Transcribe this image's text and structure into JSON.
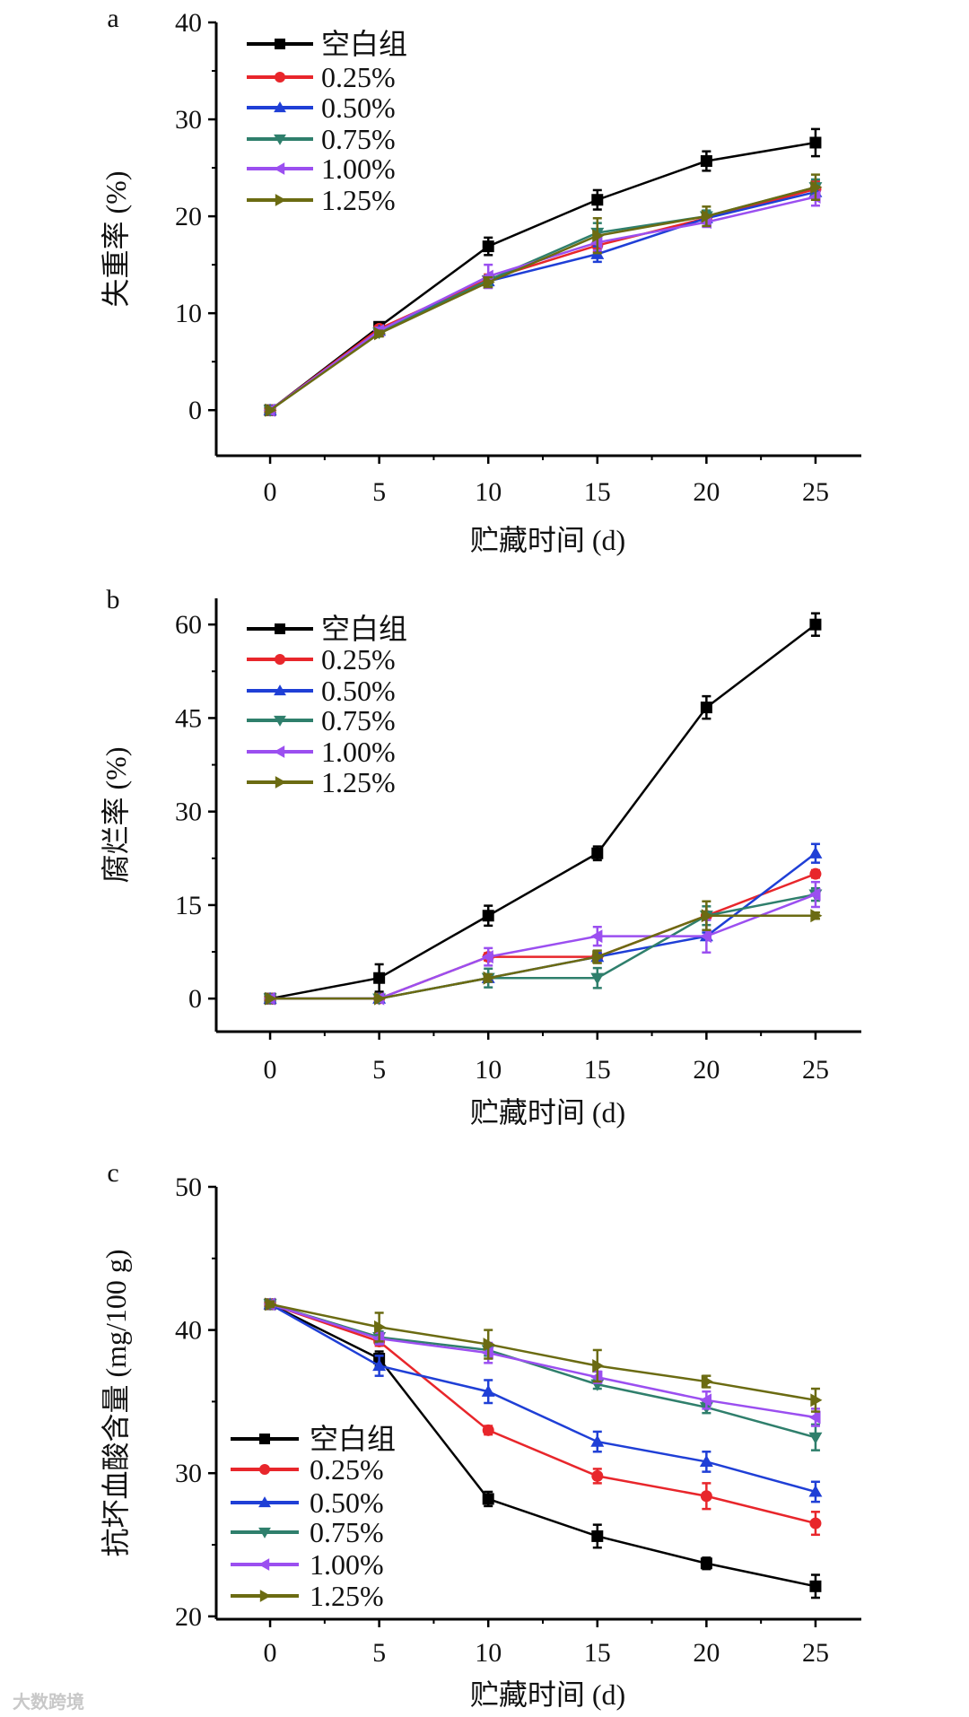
{
  "watermark": "大数跨境",
  "chart_data": [
    {
      "type": "line",
      "panel_label": "a",
      "xlabel": "贮藏时间 (d)",
      "ylabel": "失重率 (%)",
      "x": [
        0,
        5,
        10,
        15,
        20,
        25
      ],
      "xticks": [
        0,
        5,
        10,
        15,
        20,
        25
      ],
      "yticks": [
        0,
        10,
        20,
        30,
        40
      ],
      "xlim": [
        -2.47,
        27.1
      ],
      "ylim": [
        -4.7,
        40
      ],
      "legend_position": "top-left",
      "grid": false,
      "series": [
        {
          "name": "空白组",
          "color": "#000000",
          "marker": "square",
          "values": [
            0,
            8.6,
            16.9,
            21.7,
            25.7,
            27.6
          ],
          "errors": [
            0,
            0.3,
            0.9,
            1.0,
            1.0,
            1.4
          ]
        },
        {
          "name": "0.25%",
          "color": "#e8262b",
          "marker": "circle",
          "values": [
            0,
            8.4,
            13.5,
            17.0,
            19.8,
            22.8
          ],
          "errors": [
            0,
            0.3,
            0.5,
            0.7,
            0.5,
            0.8
          ]
        },
        {
          "name": "0.50%",
          "color": "#1f3fd6",
          "marker": "triangle-up",
          "values": [
            0,
            8.2,
            13.3,
            16.1,
            19.8,
            22.5
          ],
          "errors": [
            0,
            0.3,
            0.5,
            0.8,
            0.5,
            0.8
          ]
        },
        {
          "name": "0.75%",
          "color": "#2f7f6c",
          "marker": "triangle-down",
          "values": [
            0,
            8.0,
            13.4,
            18.3,
            20.0,
            23.0
          ],
          "errors": [
            0,
            0.3,
            0.5,
            1.0,
            0.6,
            0.8
          ]
        },
        {
          "name": "1.00%",
          "color": "#9b4ff0",
          "marker": "triangle-left",
          "values": [
            0,
            8.2,
            13.8,
            17.3,
            19.4,
            22.0
          ],
          "errors": [
            0,
            0.3,
            1.2,
            0.8,
            0.5,
            0.9
          ]
        },
        {
          "name": "1.25%",
          "color": "#6b6b12",
          "marker": "triangle-right",
          "values": [
            0,
            7.9,
            13.2,
            18.0,
            20.0,
            23.0
          ],
          "errors": [
            0,
            0.3,
            0.5,
            1.8,
            1.0,
            1.3
          ]
        }
      ]
    },
    {
      "type": "line",
      "panel_label": "b",
      "xlabel": "贮藏时间 (d)",
      "ylabel": "腐烂率 (%)",
      "x": [
        0,
        5,
        10,
        15,
        20,
        25
      ],
      "xticks": [
        0,
        5,
        10,
        15,
        20,
        25
      ],
      "yticks": [
        0,
        15,
        30,
        45,
        60
      ],
      "xlim": [
        -2.47,
        27.1
      ],
      "ylim": [
        -5.3,
        64.2
      ],
      "legend_position": "top-left",
      "grid": false,
      "series": [
        {
          "name": "空白组",
          "color": "#000000",
          "marker": "square",
          "values": [
            0,
            3.3,
            13.3,
            23.3,
            46.7,
            60.0
          ],
          "errors": [
            0,
            2.2,
            1.6,
            1.1,
            1.8,
            1.8
          ]
        },
        {
          "name": "0.25%",
          "color": "#e8262b",
          "marker": "circle",
          "values": [
            0,
            0,
            6.7,
            6.7,
            13.3,
            20.0
          ],
          "errors": [
            0,
            0,
            0.6,
            0.6,
            0.6,
            0.6
          ]
        },
        {
          "name": "0.50%",
          "color": "#1f3fd6",
          "marker": "triangle-up",
          "values": [
            0,
            0,
            3.3,
            6.7,
            10.0,
            23.3
          ],
          "errors": [
            0,
            0,
            0.6,
            0.6,
            0.6,
            1.5
          ]
        },
        {
          "name": "0.75%",
          "color": "#2f7f6c",
          "marker": "triangle-down",
          "values": [
            0,
            0,
            3.3,
            3.3,
            13.3,
            16.7
          ],
          "errors": [
            0,
            0,
            1.5,
            1.6,
            1.5,
            1.0
          ]
        },
        {
          "name": "1.00%",
          "color": "#9b4ff0",
          "marker": "triangle-left",
          "values": [
            0,
            0,
            6.7,
            10.0,
            10.0,
            16.7
          ],
          "errors": [
            0,
            0,
            1.4,
            1.5,
            2.6,
            2.0
          ]
        },
        {
          "name": "1.25%",
          "color": "#6b6b12",
          "marker": "triangle-right",
          "values": [
            0,
            0,
            3.3,
            6.7,
            13.3,
            13.3
          ],
          "errors": [
            0,
            0,
            0.6,
            1.0,
            2.3,
            0.5
          ]
        }
      ]
    },
    {
      "type": "line",
      "panel_label": "c",
      "xlabel": "贮藏时间 (d)",
      "ylabel": "抗坏血酸含量 (mg/100 g)",
      "x": [
        0,
        5,
        10,
        15,
        20,
        25
      ],
      "xticks": [
        0,
        5,
        10,
        15,
        20,
        25
      ],
      "yticks": [
        20,
        30,
        40,
        50
      ],
      "xlim": [
        -2.47,
        27.1
      ],
      "ylim": [
        19.8,
        50
      ],
      "legend_position": "bottom-left",
      "grid": false,
      "series": [
        {
          "name": "空白组",
          "color": "#000000",
          "marker": "square",
          "values": [
            41.8,
            38.0,
            28.2,
            25.6,
            23.7,
            22.1
          ],
          "errors": [
            0.2,
            0.5,
            0.5,
            0.8,
            0.4,
            0.8
          ]
        },
        {
          "name": "0.25%",
          "color": "#e8262b",
          "marker": "circle",
          "values": [
            41.8,
            39.2,
            33.0,
            29.8,
            28.4,
            26.5
          ],
          "errors": [
            0.2,
            0.3,
            0.3,
            0.5,
            0.9,
            0.8
          ]
        },
        {
          "name": "0.50%",
          "color": "#1f3fd6",
          "marker": "triangle-up",
          "values": [
            41.8,
            37.5,
            35.7,
            32.2,
            30.8,
            28.7
          ],
          "errors": [
            0.2,
            0.7,
            0.8,
            0.7,
            0.7,
            0.7
          ]
        },
        {
          "name": "0.75%",
          "color": "#2f7f6c",
          "marker": "triangle-down",
          "values": [
            41.8,
            39.5,
            38.6,
            36.2,
            34.6,
            32.5
          ],
          "errors": [
            0.2,
            0.4,
            0.4,
            0.3,
            0.4,
            0.9
          ]
        },
        {
          "name": "1.00%",
          "color": "#9b4ff0",
          "marker": "triangle-left",
          "values": [
            41.8,
            39.4,
            38.4,
            36.7,
            35.1,
            33.9
          ],
          "errors": [
            0.2,
            0.4,
            0.7,
            0.4,
            0.6,
            0.6
          ]
        },
        {
          "name": "1.25%",
          "color": "#6b6b12",
          "marker": "triangle-right",
          "values": [
            41.8,
            40.2,
            39.0,
            37.5,
            36.4,
            35.1
          ],
          "errors": [
            0.2,
            1.0,
            1.0,
            1.1,
            0.4,
            0.8
          ]
        }
      ]
    }
  ]
}
